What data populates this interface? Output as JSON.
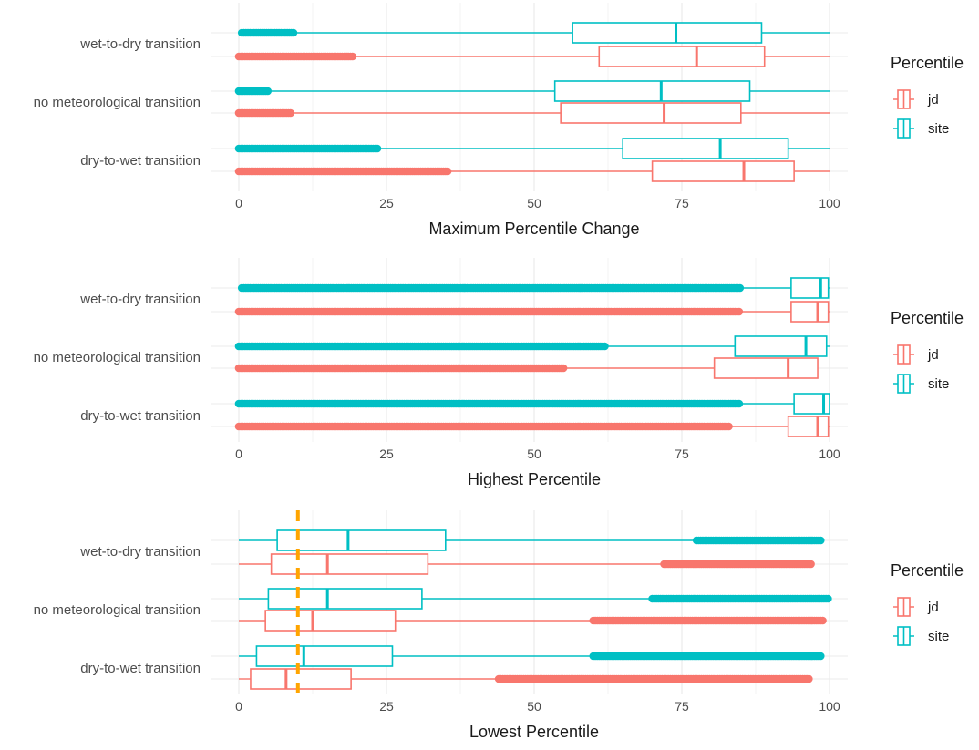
{
  "colors": {
    "jd": "#F8766D",
    "site": "#00BFC4",
    "threshold": "#FFA500",
    "grid": "#EBEBEB"
  },
  "legend": {
    "title": "Percentile",
    "items": [
      "jd",
      "site"
    ]
  },
  "chart_data": [
    {
      "type": "boxplot",
      "orientation": "horizontal",
      "xlabel": "Maximum Percentile Change",
      "xlim": [
        0,
        100
      ],
      "xticks": [
        0,
        25,
        50,
        75,
        100
      ],
      "grid": true,
      "legend_position": "right",
      "categories": [
        "wet-to-dry transition",
        "no meteorological transition",
        "dry-to-wet transition"
      ],
      "series": [
        {
          "name": "site",
          "boxes": [
            {
              "category": "wet-to-dry transition",
              "whisker_low": 9.5,
              "q1": 56.5,
              "median": 74,
              "q3": 88.5,
              "whisker_high": 100,
              "outliers_range": [
                0.5,
                9.5
              ]
            },
            {
              "category": "no meteorological transition",
              "whisker_low": 5,
              "q1": 53.5,
              "median": 71.5,
              "q3": 86.5,
              "whisker_high": 100,
              "outliers_range": [
                0,
                5
              ]
            },
            {
              "category": "dry-to-wet transition",
              "whisker_low": 23.5,
              "q1": 65,
              "median": 81.5,
              "q3": 93,
              "whisker_high": 100,
              "outliers_range": [
                0,
                23.5
              ]
            }
          ]
        },
        {
          "name": "jd",
          "boxes": [
            {
              "category": "wet-to-dry transition",
              "whisker_low": 19.5,
              "q1": 61,
              "median": 77.5,
              "q3": 89,
              "whisker_high": 100,
              "outliers_range": [
                0,
                19.5
              ]
            },
            {
              "category": "no meteorological transition",
              "whisker_low": 9,
              "q1": 54.5,
              "median": 72,
              "q3": 85,
              "whisker_high": 100,
              "outliers_range": [
                0,
                9
              ]
            },
            {
              "category": "dry-to-wet transition",
              "whisker_low": 35.5,
              "q1": 70,
              "median": 85.5,
              "q3": 94,
              "whisker_high": 100,
              "outliers_range": [
                0,
                35.5
              ]
            }
          ]
        }
      ]
    },
    {
      "type": "boxplot",
      "orientation": "horizontal",
      "xlabel": "Highest Percentile",
      "xlim": [
        0,
        100
      ],
      "xticks": [
        0,
        25,
        50,
        75,
        100
      ],
      "grid": true,
      "legend_position": "right",
      "categories": [
        "wet-to-dry transition",
        "no meteorological transition",
        "dry-to-wet transition"
      ],
      "series": [
        {
          "name": "site",
          "boxes": [
            {
              "category": "wet-to-dry transition",
              "whisker_low": 85,
              "q1": 93.5,
              "median": 98.5,
              "q3": 99.8,
              "whisker_high": 100,
              "outliers_range": [
                0.5,
                85
              ]
            },
            {
              "category": "no meteorological transition",
              "whisker_low": 62,
              "q1": 84,
              "median": 96,
              "q3": 99.5,
              "whisker_high": 100,
              "outliers_range": [
                0,
                62
              ]
            },
            {
              "category": "dry-to-wet transition",
              "whisker_low": 85,
              "q1": 94,
              "median": 99,
              "q3": 100,
              "whisker_high": 100,
              "outliers_range": [
                0,
                85
              ]
            }
          ]
        },
        {
          "name": "jd",
          "boxes": [
            {
              "category": "wet-to-dry transition",
              "whisker_low": 85,
              "q1": 93.5,
              "median": 98,
              "q3": 99.8,
              "whisker_high": 100,
              "outliers_range": [
                0,
                85
              ]
            },
            {
              "category": "no meteorological transition",
              "whisker_low": 55,
              "q1": 80.5,
              "median": 93,
              "q3": 98,
              "whisker_high": 98,
              "outliers_range": [
                0,
                55
              ]
            },
            {
              "category": "dry-to-wet transition",
              "whisker_low": 83,
              "q1": 93,
              "median": 98,
              "q3": 99.8,
              "whisker_high": 100,
              "outliers_range": [
                0,
                83
              ]
            }
          ]
        }
      ]
    },
    {
      "type": "boxplot",
      "orientation": "horizontal",
      "xlabel": "Lowest Percentile",
      "xlim": [
        0,
        100
      ],
      "xticks": [
        0,
        25,
        50,
        75,
        100
      ],
      "grid": true,
      "legend_position": "right",
      "reference_line": {
        "x": 10,
        "style": "dashed"
      },
      "categories": [
        "wet-to-dry transition",
        "no meteorological transition",
        "dry-to-wet transition"
      ],
      "series": [
        {
          "name": "site",
          "boxes": [
            {
              "category": "wet-to-dry transition",
              "whisker_low": 0,
              "q1": 6.5,
              "median": 18.5,
              "q3": 35,
              "whisker_high": 77.5,
              "outliers_range": [
                77.5,
                98.5
              ]
            },
            {
              "category": "no meteorological transition",
              "whisker_low": 0,
              "q1": 5,
              "median": 15,
              "q3": 31,
              "whisker_high": 70,
              "outliers_range": [
                70,
                100
              ]
            },
            {
              "category": "dry-to-wet transition",
              "whisker_low": 0,
              "q1": 3,
              "median": 11,
              "q3": 26,
              "whisker_high": 60,
              "outliers_range": [
                60,
                98.5
              ]
            }
          ]
        },
        {
          "name": "jd",
          "boxes": [
            {
              "category": "wet-to-dry transition",
              "whisker_low": 0,
              "q1": 5.5,
              "median": 15,
              "q3": 32,
              "whisker_high": 72,
              "outliers_range": [
                72,
                97
              ]
            },
            {
              "category": "no meteorological transition",
              "whisker_low": 0,
              "q1": 4.5,
              "median": 12.5,
              "q3": 26.5,
              "whisker_high": 60,
              "outliers_range": [
                60,
                99
              ]
            },
            {
              "category": "dry-to-wet transition",
              "whisker_low": 0,
              "q1": 2,
              "median": 8,
              "q3": 19,
              "whisker_high": 44,
              "outliers_range": [
                44,
                96.5
              ]
            }
          ]
        }
      ]
    }
  ]
}
